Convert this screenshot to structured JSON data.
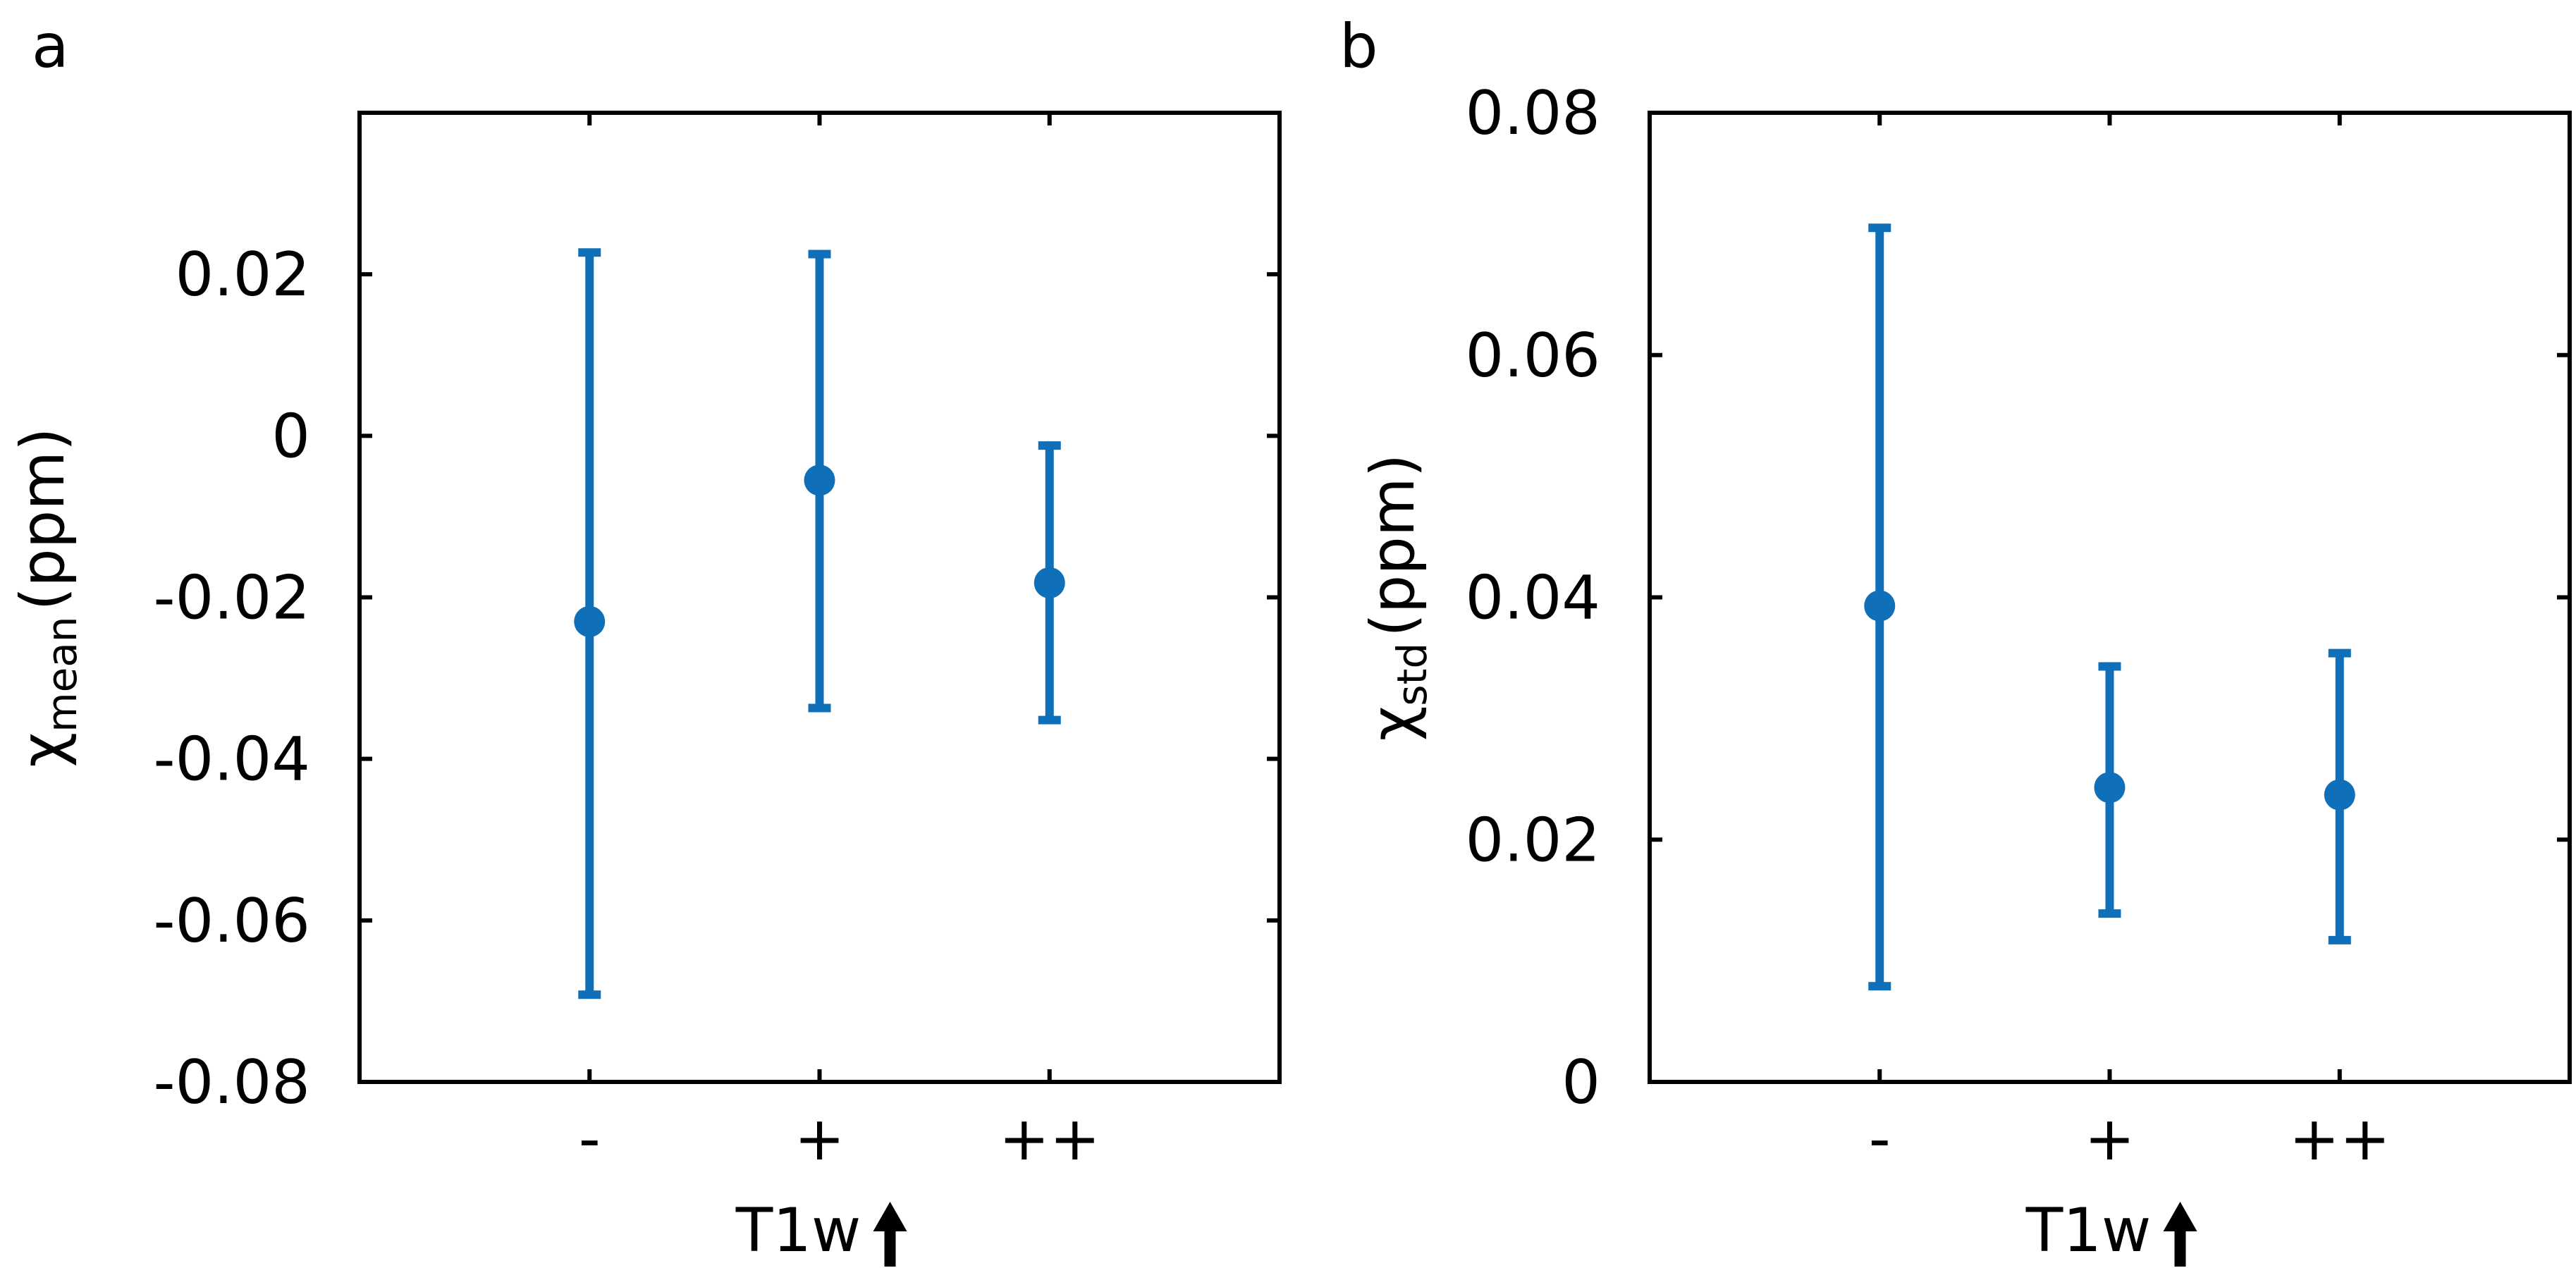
{
  "chart_data": [
    {
      "type": "scatter",
      "panel_label": "a",
      "categories": [
        "-",
        "+",
        "++"
      ],
      "xlabel": "T1w",
      "xlabel_arrow": "up-arrow-icon",
      "ylabel_main": "χ",
      "ylabel_sub": "mean",
      "ylabel_unit": "(ppm)",
      "ylim": [
        -0.08,
        0.04
      ],
      "yticks": [
        -0.08,
        -0.06,
        -0.04,
        -0.02,
        0,
        0.02
      ],
      "ytick_labels": [
        "-0.08",
        "-0.06",
        "-0.04",
        "-0.02",
        "0",
        "0.02"
      ],
      "series": [
        {
          "color": "#0f6fb8",
          "values": [
            -0.023,
            -0.0055,
            -0.0182
          ],
          "lower": [
            -0.0692,
            -0.0337,
            -0.0352
          ],
          "upper": [
            0.0227,
            0.0225,
            -0.0012
          ]
        }
      ],
      "grid": false
    },
    {
      "type": "scatter",
      "panel_label": "b",
      "categories": [
        "-",
        "+",
        "++"
      ],
      "xlabel": "T1w",
      "xlabel_arrow": "up-arrow-icon",
      "ylabel_main": "χ",
      "ylabel_sub": "std",
      "ylabel_unit": "(ppm)",
      "ylim": [
        0,
        0.08
      ],
      "yticks": [
        0,
        0.02,
        0.04,
        0.06,
        0.08
      ],
      "ytick_labels": [
        "0",
        "0.02",
        "0.04",
        "0.06",
        "0.08"
      ],
      "series": [
        {
          "color": "#0f6fb8",
          "values": [
            0.0393,
            0.0243,
            0.0237
          ],
          "lower": [
            0.0079,
            0.0139,
            0.0117
          ],
          "upper": [
            0.0705,
            0.0343,
            0.0354
          ]
        }
      ],
      "grid": false
    }
  ]
}
